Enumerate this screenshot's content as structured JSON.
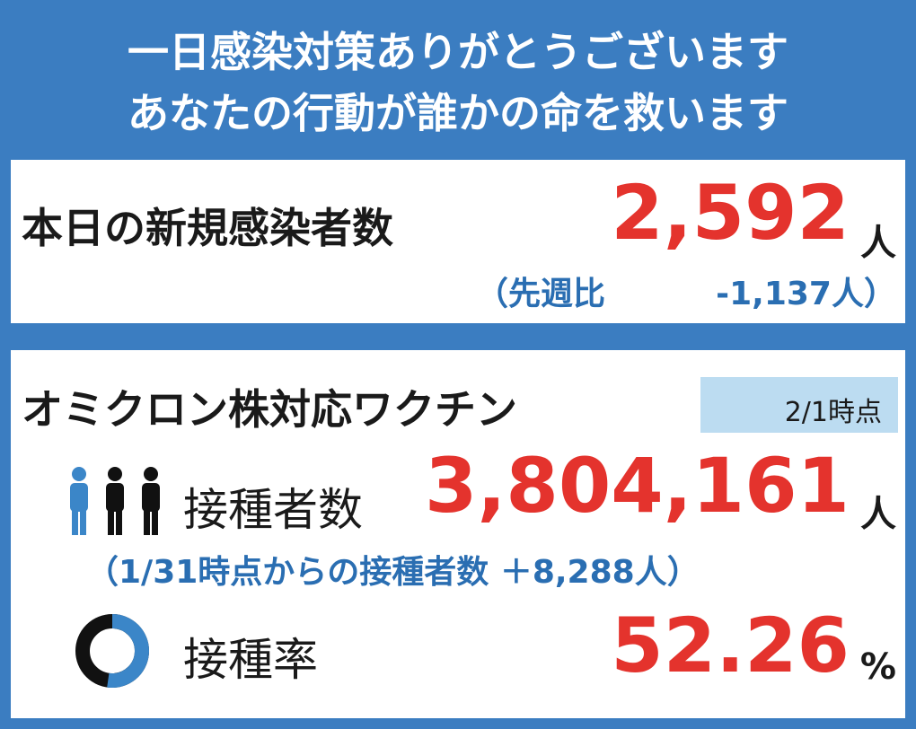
{
  "header": {
    "line1": "一日感染対策ありがとうございます",
    "line2": "あなたの行動が誰かの命を救います"
  },
  "infections": {
    "label": "本日の新規感染者数",
    "value": "2,592",
    "unit": "人",
    "comparison_label": "（先週比",
    "comparison_value": "-1,137人）"
  },
  "vaccine": {
    "title": "オミクロン株対応ワクチン",
    "as_of": "2/1時点",
    "vaccinated": {
      "label": "接種者数",
      "value": "3,804,161",
      "unit": "人",
      "note": "（1/31時点からの接種者数 ＋8,288人）"
    },
    "rate": {
      "label": "接種率",
      "value": 52.26,
      "unit": "%"
    }
  }
}
